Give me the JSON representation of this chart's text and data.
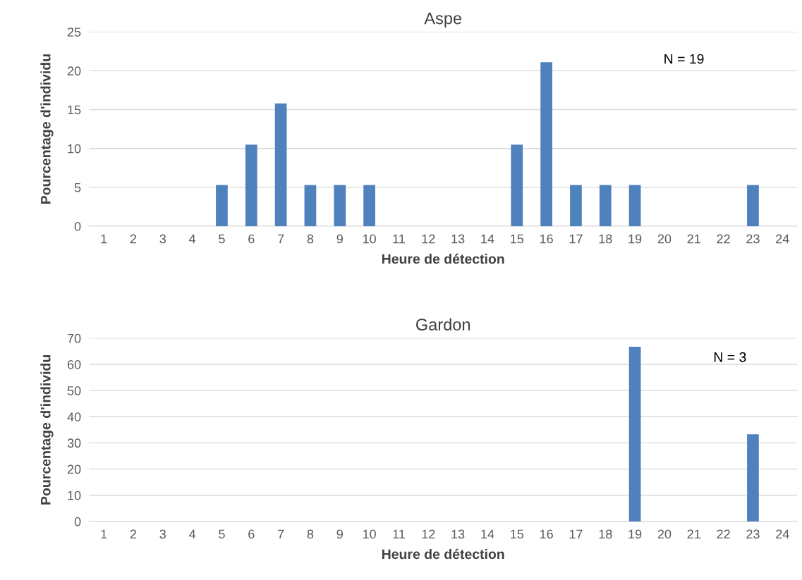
{
  "chart_data": [
    {
      "type": "bar",
      "title": "Aspe",
      "xlabel": "Heure de détection",
      "ylabel": "Pourcentage d'individu",
      "categories": [
        "1",
        "2",
        "3",
        "4",
        "5",
        "6",
        "7",
        "8",
        "9",
        "10",
        "11",
        "12",
        "13",
        "14",
        "15",
        "16",
        "17",
        "18",
        "19",
        "20",
        "21",
        "22",
        "23",
        "24"
      ],
      "values": [
        0,
        0,
        0,
        0,
        5.3,
        10.5,
        15.8,
        5.3,
        5.3,
        5.3,
        0,
        0,
        0,
        0,
        10.5,
        21.1,
        5.3,
        5.3,
        5.3,
        0,
        0,
        0,
        5.3,
        0
      ],
      "color": "#4f81bd",
      "ylim": [
        0,
        25
      ],
      "yticks": [
        0,
        5,
        10,
        15,
        20,
        25
      ],
      "grid": "y",
      "annotations": [
        "N = 19"
      ]
    },
    {
      "type": "bar",
      "title": "Gardon",
      "xlabel": "Heure de détection",
      "ylabel": "Pourcentage d'individu",
      "categories": [
        "1",
        "2",
        "3",
        "4",
        "5",
        "6",
        "7",
        "8",
        "9",
        "10",
        "11",
        "12",
        "13",
        "14",
        "15",
        "16",
        "17",
        "18",
        "19",
        "20",
        "21",
        "22",
        "23",
        "24"
      ],
      "values": [
        0,
        0,
        0,
        0,
        0,
        0,
        0,
        0,
        0,
        0,
        0,
        0,
        0,
        0,
        0,
        0,
        0,
        0,
        66.7,
        0,
        0,
        0,
        33.3,
        0
      ],
      "color": "#4f81bd",
      "ylim": [
        0,
        70
      ],
      "yticks": [
        0,
        10,
        20,
        30,
        40,
        50,
        60,
        70
      ],
      "grid": "y",
      "annotations": [
        "N = 3"
      ]
    }
  ]
}
